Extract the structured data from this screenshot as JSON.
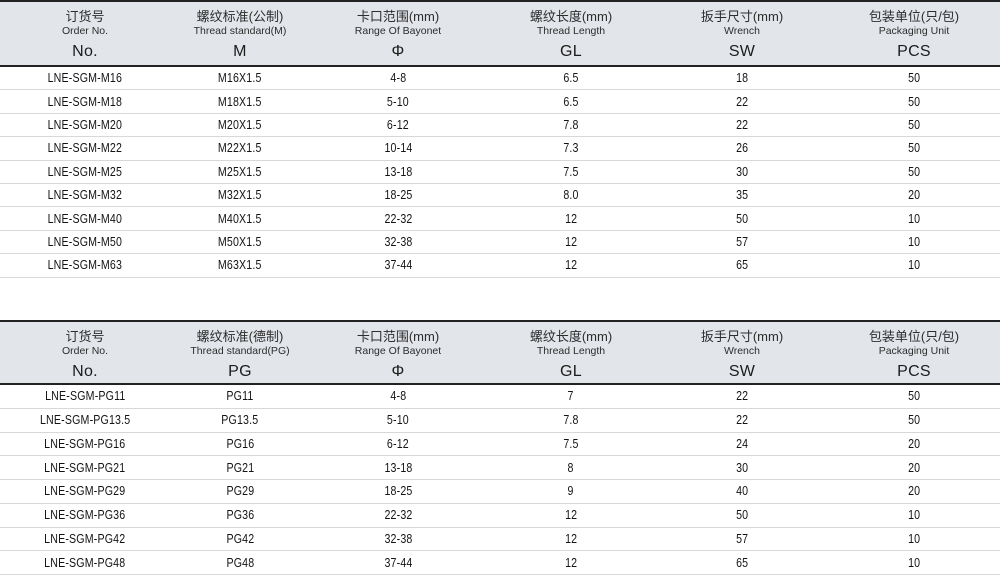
{
  "colors": {
    "header_bg": "#e2e5ea",
    "border_dark": "#222222",
    "row_divider": "#d6d8da",
    "text": "#141414"
  },
  "tables": [
    {
      "name": "metric-thread-table",
      "columns": [
        {
          "zh": "订货号",
          "en": "Order No.",
          "code": "No."
        },
        {
          "zh": "螺纹标准(公制)",
          "en": "Thread standard(M)",
          "code": "M"
        },
        {
          "zh": "卡口范围(mm)",
          "en": "Range Of Bayonet",
          "code": "Φ"
        },
        {
          "zh": "螺纹长度(mm)",
          "en": "Thread Length",
          "code": "GL"
        },
        {
          "zh": "扳手尺寸(mm)",
          "en": "Wrench",
          "code": "SW"
        },
        {
          "zh": "包装单位(只/包)",
          "en": "Packaging Unit",
          "code": "PCS"
        }
      ],
      "rows": [
        [
          "LNE-SGM-M16",
          "M16X1.5",
          "4-8",
          "6.5",
          "18",
          "50"
        ],
        [
          "LNE-SGM-M18",
          "M18X1.5",
          "5-10",
          "6.5",
          "22",
          "50"
        ],
        [
          "LNE-SGM-M20",
          "M20X1.5",
          "6-12",
          "7.8",
          "22",
          "50"
        ],
        [
          "LNE-SGM-M22",
          "M22X1.5",
          "10-14",
          "7.3",
          "26",
          "50"
        ],
        [
          "LNE-SGM-M25",
          "M25X1.5",
          "13-18",
          "7.5",
          "30",
          "50"
        ],
        [
          "LNE-SGM-M32",
          "M32X1.5",
          "18-25",
          "8.0",
          "35",
          "20"
        ],
        [
          "LNE-SGM-M40",
          "M40X1.5",
          "22-32",
          "12",
          "50",
          "10"
        ],
        [
          "LNE-SGM-M50",
          "M50X1.5",
          "32-38",
          "12",
          "57",
          "10"
        ],
        [
          "LNE-SGM-M63",
          "M63X1.5",
          "37-44",
          "12",
          "65",
          "10"
        ]
      ]
    },
    {
      "name": "pg-thread-table",
      "columns": [
        {
          "zh": "订货号",
          "en": "Order No.",
          "code": "No."
        },
        {
          "zh": "螺纹标准(德制)",
          "en": "Thread standard(PG)",
          "code": "PG"
        },
        {
          "zh": "卡口范围(mm)",
          "en": "Range Of Bayonet",
          "code": "Φ"
        },
        {
          "zh": "螺纹长度(mm)",
          "en": "Thread Length",
          "code": "GL"
        },
        {
          "zh": "扳手尺寸(mm)",
          "en": "Wrench",
          "code": "SW"
        },
        {
          "zh": "包装单位(只/包)",
          "en": "Packaging Unit",
          "code": "PCS"
        }
      ],
      "rows": [
        [
          "LNE-SGM-PG11",
          "PG11",
          "4-8",
          "7",
          "22",
          "50"
        ],
        [
          "LNE-SGM-PG13.5",
          "PG13.5",
          "5-10",
          "7.8",
          "22",
          "50"
        ],
        [
          "LNE-SGM-PG16",
          "PG16",
          "6-12",
          "7.5",
          "24",
          "20"
        ],
        [
          "LNE-SGM-PG21",
          "PG21",
          "13-18",
          "8",
          "30",
          "20"
        ],
        [
          "LNE-SGM-PG29",
          "PG29",
          "18-25",
          "9",
          "40",
          "20"
        ],
        [
          "LNE-SGM-PG36",
          "PG36",
          "22-32",
          "12",
          "50",
          "10"
        ],
        [
          "LNE-SGM-PG42",
          "PG42",
          "32-38",
          "12",
          "57",
          "10"
        ],
        [
          "LNE-SGM-PG48",
          "PG48",
          "37-44",
          "12",
          "65",
          "10"
        ]
      ]
    }
  ]
}
